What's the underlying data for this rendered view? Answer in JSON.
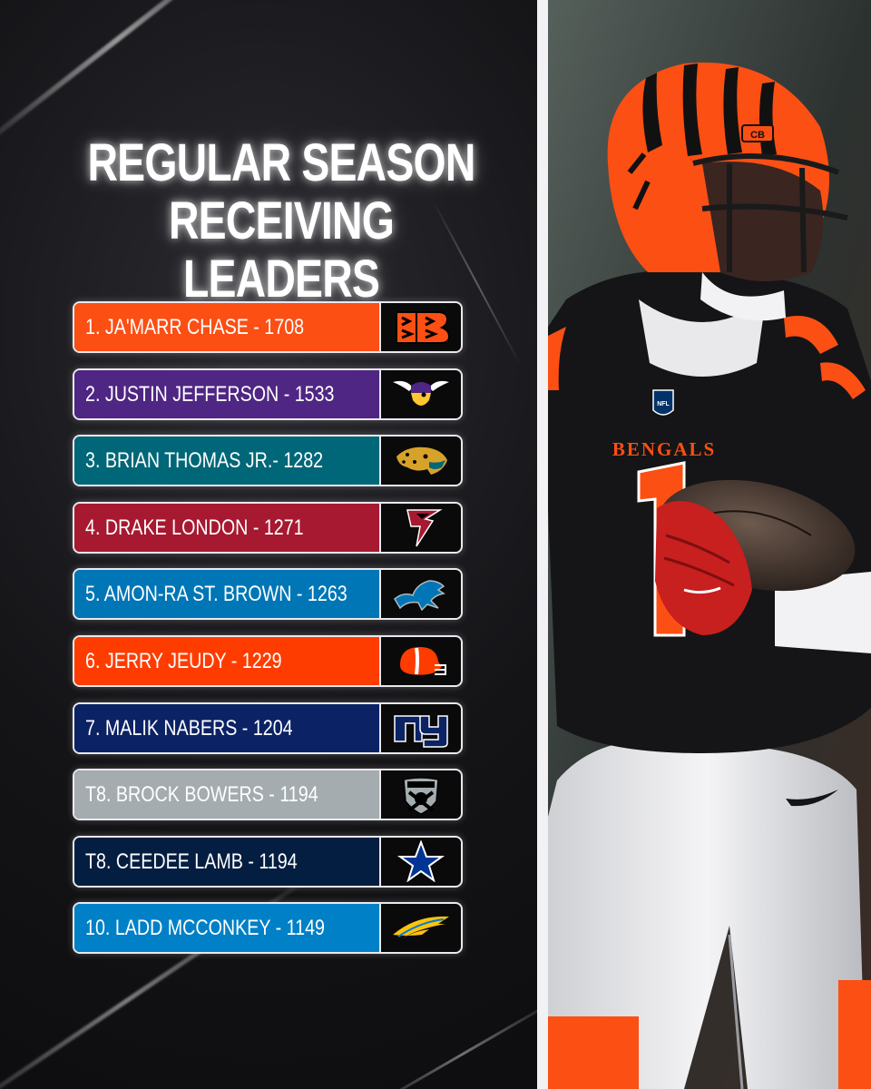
{
  "title": {
    "line1": "REGULAR SEASON",
    "line2": "RECEIVING LEADERS"
  },
  "leaders": [
    {
      "text": "1. JA'MARR CHASE - 1708",
      "color": "#fb4f14",
      "logo_icon": "bengals-logo-icon"
    },
    {
      "text": "2. JUSTIN JEFFERSON - 1533",
      "color": "#4f2683",
      "logo_icon": "vikings-logo-icon"
    },
    {
      "text": "3. BRIAN THOMAS JR.- 1282",
      "color": "#006778",
      "logo_icon": "jaguars-logo-icon"
    },
    {
      "text": "4. DRAKE LONDON - 1271",
      "color": "#a71930",
      "logo_icon": "falcons-logo-icon"
    },
    {
      "text": "5. AMON-RA ST. BROWN - 1263",
      "color": "#0076b6",
      "logo_icon": "lions-logo-icon"
    },
    {
      "text": "6. JERRY JEUDY - 1229",
      "color": "#ff3c00",
      "logo_icon": "browns-logo-icon"
    },
    {
      "text": "7. MALIK NABERS - 1204",
      "color": "#0b2265",
      "logo_icon": "giants-logo-icon"
    },
    {
      "text": "T8. BROCK BOWERS - 1194",
      "color": "#a5acaf",
      "logo_icon": "raiders-logo-icon"
    },
    {
      "text": "T8. CEEDEE LAMB - 1194",
      "color": "#041e42",
      "logo_icon": "cowboys-logo-icon"
    },
    {
      "text": "10. LADD MCCONKEY - 1149",
      "color": "#0080c6",
      "logo_icon": "chargers-logo-icon"
    }
  ],
  "photo": {
    "jersey_text": "BENGALS",
    "helmet_text": "CB",
    "shield_text": "NFL"
  }
}
